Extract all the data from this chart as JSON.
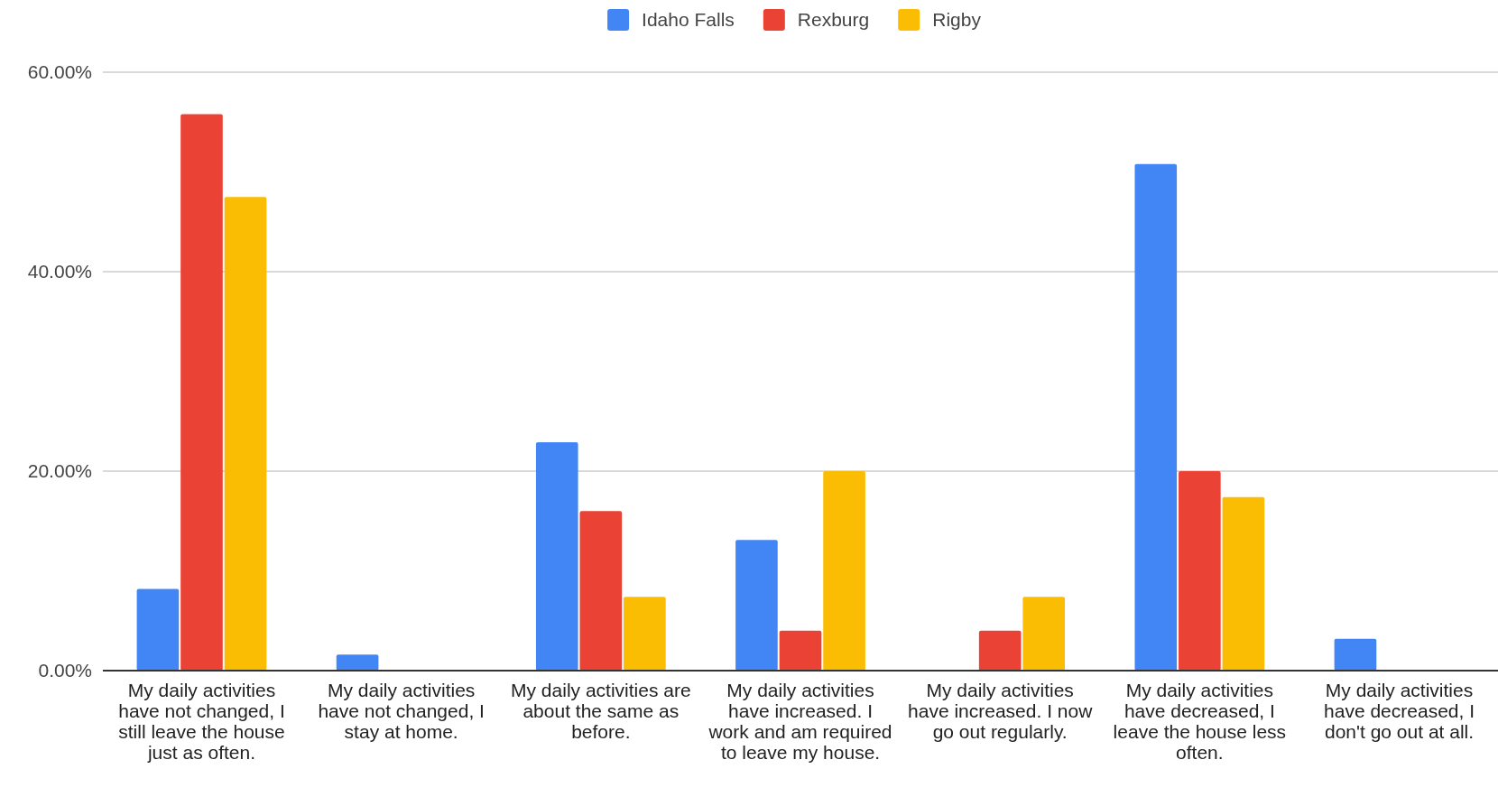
{
  "chart_data": {
    "type": "bar",
    "categories": [
      "My daily activities have not changed, I still leave the house just as often.",
      "My daily activities have not changed, I stay at home.",
      "My daily activities are about the same as before.",
      "My daily activities have increased. I work and am required to leave my house.",
      "My daily activities have increased. I now go out regularly.",
      "My daily activities have decreased, I leave the house less often.",
      "My daily activities have decreased, I don't go out at all."
    ],
    "series": [
      {
        "name": "Idaho Falls",
        "color": "#4285f4",
        "values": [
          8.2,
          1.6,
          22.9,
          13.1,
          0,
          50.8,
          3.2
        ]
      },
      {
        "name": "Rexburg",
        "color": "#ea4335",
        "values": [
          55.8,
          0,
          16.0,
          4.0,
          4.0,
          20.0,
          0
        ]
      },
      {
        "name": "Rigby",
        "color": "#fbbc04",
        "values": [
          47.5,
          0,
          7.4,
          20.0,
          7.4,
          17.4,
          0
        ]
      }
    ],
    "ylim": [
      0,
      60
    ],
    "yticks": [
      {
        "value": 0,
        "label": "0.00%"
      },
      {
        "value": 20,
        "label": "20.00%"
      },
      {
        "value": 40,
        "label": "40.00%"
      },
      {
        "value": 60,
        "label": "60.00%"
      }
    ],
    "grid": "y",
    "legend": "top"
  }
}
